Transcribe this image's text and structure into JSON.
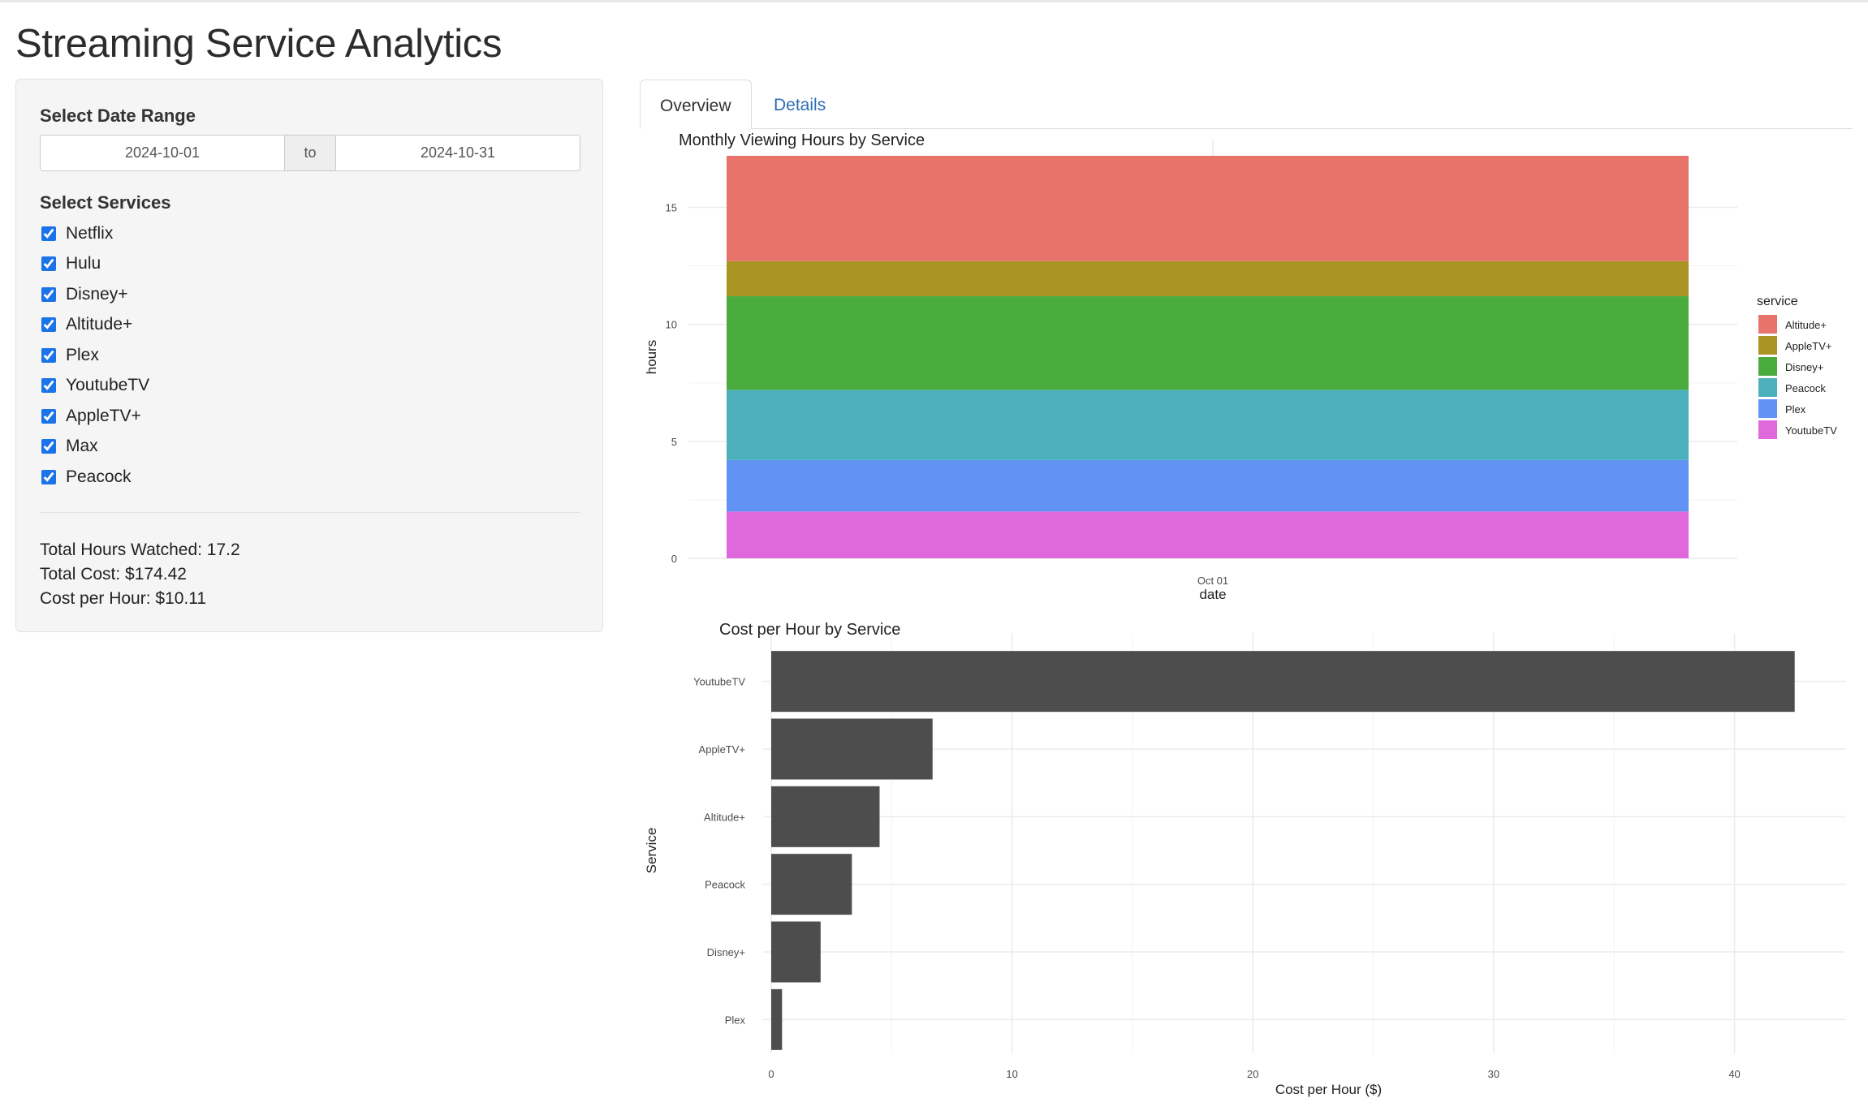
{
  "page": {
    "title": "Streaming Service Analytics"
  },
  "sidebar": {
    "date_label": "Select Date Range",
    "date_start": "2024-10-01",
    "date_separator": "to",
    "date_end": "2024-10-31",
    "services_label": "Select Services",
    "services": [
      {
        "label": "Netflix",
        "checked": true
      },
      {
        "label": "Hulu",
        "checked": true
      },
      {
        "label": "Disney+",
        "checked": true
      },
      {
        "label": "Altitude+",
        "checked": true
      },
      {
        "label": "Plex",
        "checked": true
      },
      {
        "label": "YoutubeTV",
        "checked": true
      },
      {
        "label": "AppleTV+",
        "checked": true
      },
      {
        "label": "Max",
        "checked": true
      },
      {
        "label": "Peacock",
        "checked": true
      }
    ],
    "stats": {
      "total_hours": "Total Hours Watched: 17.2",
      "total_cost": "Total Cost: $174.42",
      "cost_per_hour": "Cost per Hour: $10.11"
    }
  },
  "tabs": [
    {
      "label": "Overview",
      "active": true
    },
    {
      "label": "Details",
      "active": false
    }
  ],
  "chart_data": [
    {
      "type": "bar",
      "stacked": true,
      "title": "Monthly Viewing Hours by Service",
      "xlabel": "date",
      "ylabel": "hours",
      "categories": [
        "Oct 01"
      ],
      "ylim": [
        0,
        17.2
      ],
      "yticks": [
        0,
        5,
        10,
        15
      ],
      "legend_title": "service",
      "legend_position": "right",
      "grid": true,
      "series": [
        {
          "name": "Altitude+",
          "color": "#E7736A",
          "values": [
            4.5
          ]
        },
        {
          "name": "AppleTV+",
          "color": "#A99424",
          "values": [
            1.5
          ]
        },
        {
          "name": "Disney+",
          "color": "#4AAC3C",
          "values": [
            4.0
          ]
        },
        {
          "name": "Peacock",
          "color": "#4CB1BC",
          "values": [
            3.0
          ]
        },
        {
          "name": "Plex",
          "color": "#6193F5",
          "values": [
            2.2
          ]
        },
        {
          "name": "YoutubeTV",
          "color": "#DF69DC",
          "values": [
            2.0
          ]
        }
      ]
    },
    {
      "type": "bar",
      "orientation": "horizontal",
      "title": "Cost per Hour by Service",
      "xlabel": "Cost per Hour ($)",
      "ylabel": "Service",
      "categories": [
        "YoutubeTV",
        "AppleTV+",
        "Altitude+",
        "Peacock",
        "Disney+",
        "Plex"
      ],
      "values": [
        42.5,
        6.7,
        4.5,
        3.35,
        2.05,
        0.45
      ],
      "xlim": [
        0,
        44.6
      ],
      "xticks": [
        0,
        10,
        20,
        30,
        40
      ],
      "bar_color": "#4D4D4D",
      "grid": true
    }
  ]
}
